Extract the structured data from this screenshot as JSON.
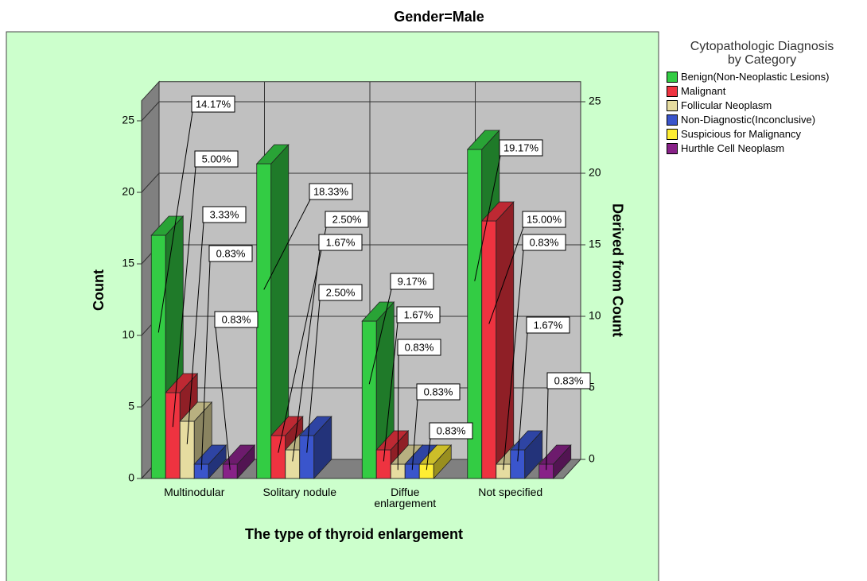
{
  "chart_data": {
    "type": "bar3d",
    "title": "Gender=Male",
    "x_label": "The type of thyroid enlargement",
    "y_label": "Count",
    "y2_label": "Derived from Count",
    "legend_title": "Cytopathologic Diagnosis by Category",
    "categories": [
      "Multinodular",
      "Solitary nodule",
      "Diffue enlargement",
      "Not specified"
    ],
    "ylim": [
      0,
      26.4
    ],
    "yticks": [
      0,
      5,
      10,
      15,
      20,
      25
    ],
    "y2lim": [
      0,
      26.4
    ],
    "y2ticks": [
      0,
      5,
      10,
      15,
      20,
      25
    ],
    "grid": true,
    "series": [
      {
        "name": "Benign(Non-Neoplastic Lesions)",
        "color": "#33cc44",
        "values": [
          17,
          22,
          11,
          23
        ],
        "value_labels": [
          "14.17%",
          "18.33%",
          "9.17%",
          "19.17%"
        ]
      },
      {
        "name": "Malignant",
        "color": "#ee3340",
        "values": [
          6,
          3,
          2,
          18
        ],
        "value_labels": [
          "5.00%",
          "2.50%",
          "1.67%",
          "15.00%"
        ]
      },
      {
        "name": "Follicular Neoplasm",
        "color": "#e6dca0",
        "values": [
          4,
          2,
          1,
          1
        ],
        "value_labels": [
          "3.33%",
          "1.67%",
          "0.83%",
          "0.83%"
        ]
      },
      {
        "name": "Non-Diagnostic(Inconclusive)",
        "color": "#3a55cc",
        "values": [
          1,
          3,
          1,
          2
        ],
        "value_labels": [
          "0.83%",
          "2.50%",
          "0.83%",
          "1.67%"
        ]
      },
      {
        "name": "Suspicious for Malignancy",
        "color": "#ffee33",
        "values": [
          0,
          0,
          1,
          0
        ],
        "value_labels": [
          null,
          null,
          "0.83%",
          null
        ]
      },
      {
        "name": "Hurthle Cell Neoplasm",
        "color": "#882288",
        "values": [
          1,
          0,
          0,
          1
        ],
        "value_labels": [
          "0.83%",
          null,
          null,
          "0.83%"
        ]
      }
    ]
  }
}
